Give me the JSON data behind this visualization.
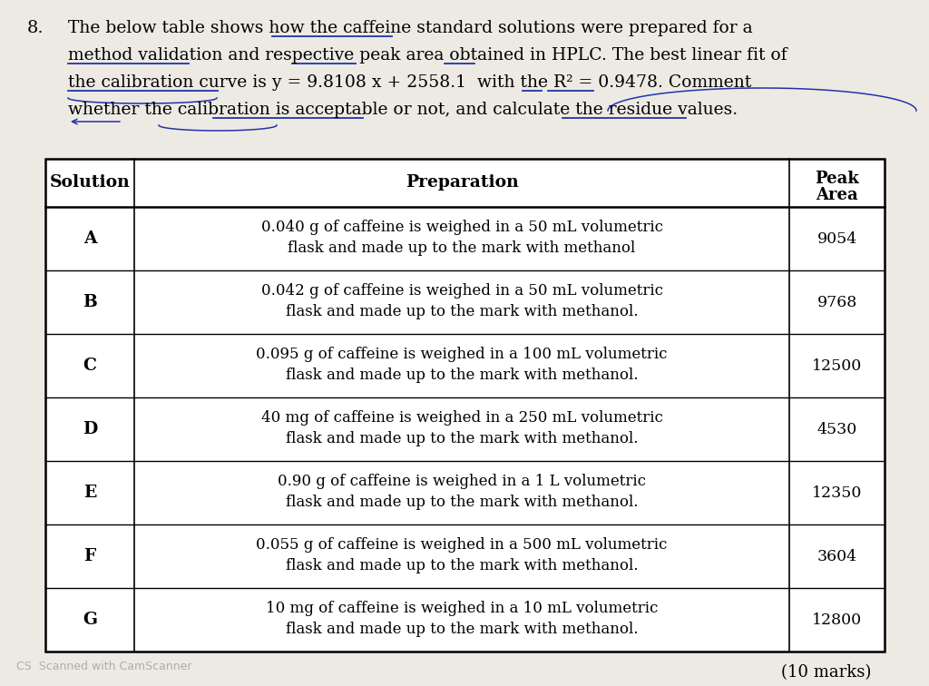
{
  "question_number": "8.",
  "question_text_lines": [
    "The below table shows how the caffeine standard solutions were prepared for a",
    "method validation and respective peak area obtained in HPLC. The best linear fit of",
    "the calibration curve is y = 9.8108 x + 2558.1  with the R² = 0.9478. Comment",
    "whether the calibration is acceptable or not, and calculate the residue values."
  ],
  "col_headers": [
    "Solution",
    "Preparation",
    "Peak\nArea"
  ],
  "rows": [
    {
      "solution": "A",
      "preparation": "0.040 g of caffeine is weighed in a 50 mL volumetric\nflask and made up to the mark with methanol",
      "peak_area": "9054"
    },
    {
      "solution": "B",
      "preparation": "0.042 g of caffeine is weighed in a 50 mL volumetric\nflask and made up to the mark with methanol.",
      "peak_area": "9768"
    },
    {
      "solution": "C",
      "preparation": "0.095 g of caffeine is weighed in a 100 mL volumetric\nflask and made up to the mark with methanol.",
      "peak_area": "12500"
    },
    {
      "solution": "D",
      "preparation": "40 mg of caffeine is weighed in a 250 mL volumetric\nflask and made up to the mark with methanol.",
      "peak_area": "4530"
    },
    {
      "solution": "E",
      "preparation": "0.90 g of caffeine is weighed in a 1 L volumetric\nflask and made up to the mark with methanol.",
      "peak_area": "12350"
    },
    {
      "solution": "F",
      "preparation": "0.055 g of caffeine is weighed in a 500 mL volumetric\nflask and made up to the mark with methanol.",
      "peak_area": "3604"
    },
    {
      "solution": "G",
      "preparation": "10 mg of caffeine is weighed in a 10 mL volumetric\nflask and made up to the mark with methanol.",
      "peak_area": "12800"
    }
  ],
  "footer_text": "(10 marks)",
  "scanner_text": "CS  Scanned with CamScanner",
  "bg_color": "#edeae4",
  "underline_color": "#2233aa"
}
